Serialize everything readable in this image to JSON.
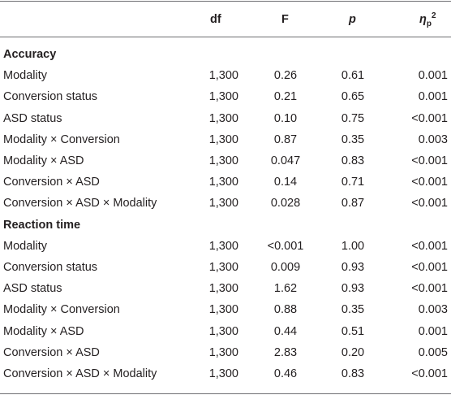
{
  "table": {
    "header": {
      "df": "df",
      "F": "F",
      "p": "p",
      "eta": {
        "symbol": "η",
        "subscript": "p",
        "superscript": "2"
      }
    },
    "sections": [
      {
        "title": "Accuracy",
        "rows": [
          [
            "Modality",
            "1,300",
            "0.26",
            "0.61",
            "0.001"
          ],
          [
            "Conversion status",
            "1,300",
            "0.21",
            "0.65",
            "0.001"
          ],
          [
            "ASD status",
            "1,300",
            "0.10",
            "0.75",
            "<0.001"
          ],
          [
            "Modality × Conversion",
            "1,300",
            "0.87",
            "0.35",
            "0.003"
          ],
          [
            "Modality × ASD",
            "1,300",
            "0.047",
            "0.83",
            "<0.001"
          ],
          [
            "Conversion × ASD",
            "1,300",
            "0.14",
            "0.71",
            "<0.001"
          ],
          [
            "Conversion × ASD × Modality",
            "1,300",
            "0.028",
            "0.87",
            "<0.001"
          ]
        ]
      },
      {
        "title": "Reaction time",
        "rows": [
          [
            "Modality",
            "1,300",
            "<0.001",
            "1.00",
            "<0.001"
          ],
          [
            "Conversion status",
            "1,300",
            "0.009",
            "0.93",
            "<0.001"
          ],
          [
            "ASD status",
            "1,300",
            "1.62",
            "0.93",
            "<0.001"
          ],
          [
            "Modality × Conversion",
            "1,300",
            "0.88",
            "0.35",
            "0.003"
          ],
          [
            "Modality × ASD",
            "1,300",
            "0.44",
            "0.51",
            "0.001"
          ],
          [
            "Conversion × ASD",
            "1,300",
            "2.83",
            "0.20",
            "0.005"
          ],
          [
            "Conversion × ASD × Modality",
            "1,300",
            "0.46",
            "0.83",
            "<0.001"
          ]
        ]
      }
    ]
  }
}
